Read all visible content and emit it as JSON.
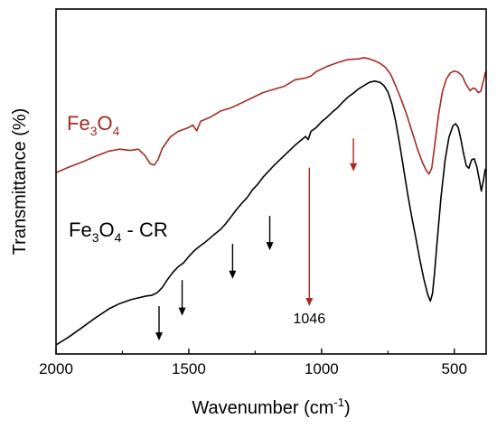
{
  "chart_data": {
    "type": "line",
    "title": "",
    "xlabel": "Wavenumber (cm",
    "xlabel_sup": "-1",
    "xlabel_close": ")",
    "ylabel": "Transmittance (%)",
    "xlim": [
      2000,
      380
    ],
    "x_reversed": true,
    "ylim": [
      0,
      100
    ],
    "y_ticks_shown": false,
    "x_ticks": [
      2000,
      1500,
      1000,
      500
    ],
    "x_tick_labels": [
      "2000",
      "1500",
      "1000",
      "500"
    ],
    "series": [
      {
        "name": "Fe3O4",
        "label_main": "Fe",
        "label_sub1": "3",
        "label_mid": "O",
        "label_sub2": "4",
        "label_suffix": "",
        "color": "#a52a22",
        "points": [
          [
            2000,
            54.2
          ],
          [
            1950,
            56.0
          ],
          [
            1900,
            57.6
          ],
          [
            1850,
            59.4
          ],
          [
            1800,
            61.0
          ],
          [
            1760,
            61.6
          ],
          [
            1720,
            61.2
          ],
          [
            1690,
            61.6
          ],
          [
            1665,
            59.6
          ],
          [
            1645,
            57.0
          ],
          [
            1630,
            56.6
          ],
          [
            1615,
            58.4
          ],
          [
            1600,
            61.8
          ],
          [
            1570,
            65.4
          ],
          [
            1540,
            67.2
          ],
          [
            1500,
            68.4
          ],
          [
            1485,
            69.2
          ],
          [
            1470,
            67.4
          ],
          [
            1455,
            70.4
          ],
          [
            1420,
            71.6
          ],
          [
            1380,
            73.6
          ],
          [
            1340,
            74.6
          ],
          [
            1300,
            76.2
          ],
          [
            1260,
            77.8
          ],
          [
            1220,
            79.4
          ],
          [
            1180,
            80.4
          ],
          [
            1140,
            81.4
          ],
          [
            1100,
            83.4
          ],
          [
            1060,
            84.0
          ],
          [
            1040,
            84.6
          ],
          [
            1020,
            86.0
          ],
          [
            980,
            87.6
          ],
          [
            940,
            88.8
          ],
          [
            900,
            89.8
          ],
          [
            860,
            90.0
          ],
          [
            840,
            90.4
          ],
          [
            820,
            90.0
          ],
          [
            800,
            89.4
          ],
          [
            780,
            88.6
          ],
          [
            760,
            87.4
          ],
          [
            740,
            85.2
          ],
          [
            720,
            81.4
          ],
          [
            700,
            77.2
          ],
          [
            680,
            72.6
          ],
          [
            660,
            67.4
          ],
          [
            640,
            62.0
          ],
          [
            620,
            57.4
          ],
          [
            605,
            54.8
          ],
          [
            595,
            53.8
          ],
          [
            585,
            55.6
          ],
          [
            575,
            62.0
          ],
          [
            560,
            72.0
          ],
          [
            545,
            79.6
          ],
          [
            530,
            83.6
          ],
          [
            515,
            85.6
          ],
          [
            500,
            86.2
          ],
          [
            485,
            85.8
          ],
          [
            470,
            84.6
          ],
          [
            455,
            81.8
          ],
          [
            440,
            80.0
          ],
          [
            430,
            80.8
          ],
          [
            420,
            80.6
          ],
          [
            410,
            79.4
          ],
          [
            400,
            79.8
          ],
          [
            390,
            83.2
          ],
          [
            382,
            86.0
          ]
        ]
      },
      {
        "name": "Fe3O4 - CR",
        "label_main": "Fe",
        "label_sub1": "3",
        "label_mid": "O",
        "label_sub2": "4",
        "label_suffix": " - CR",
        "color": "#000000",
        "points": [
          [
            2000,
            0.0
          ],
          [
            1950,
            2.6
          ],
          [
            1900,
            5.6
          ],
          [
            1850,
            8.6
          ],
          [
            1800,
            11.4
          ],
          [
            1760,
            13.0
          ],
          [
            1720,
            14.2
          ],
          [
            1690,
            14.8
          ],
          [
            1660,
            15.4
          ],
          [
            1640,
            15.6
          ],
          [
            1620,
            16.4
          ],
          [
            1600,
            18.0
          ],
          [
            1580,
            20.6
          ],
          [
            1560,
            22.8
          ],
          [
            1540,
            24.6
          ],
          [
            1520,
            25.8
          ],
          [
            1500,
            27.8
          ],
          [
            1480,
            29.6
          ],
          [
            1460,
            31.0
          ],
          [
            1440,
            32.2
          ],
          [
            1420,
            33.6
          ],
          [
            1400,
            35.0
          ],
          [
            1380,
            36.4
          ],
          [
            1360,
            38.2
          ],
          [
            1340,
            40.4
          ],
          [
            1320,
            42.6
          ],
          [
            1300,
            44.6
          ],
          [
            1280,
            46.4
          ],
          [
            1260,
            48.8
          ],
          [
            1240,
            50.6
          ],
          [
            1220,
            52.8
          ],
          [
            1200,
            54.6
          ],
          [
            1180,
            56.4
          ],
          [
            1160,
            58.0
          ],
          [
            1140,
            59.6
          ],
          [
            1120,
            61.2
          ],
          [
            1100,
            62.8
          ],
          [
            1080,
            64.2
          ],
          [
            1060,
            65.6
          ],
          [
            1050,
            64.6
          ],
          [
            1040,
            67.2
          ],
          [
            1020,
            68.4
          ],
          [
            1000,
            70.2
          ],
          [
            980,
            71.6
          ],
          [
            960,
            73.2
          ],
          [
            940,
            74.6
          ],
          [
            920,
            76.4
          ],
          [
            900,
            78.0
          ],
          [
            880,
            79.2
          ],
          [
            860,
            80.6
          ],
          [
            840,
            81.6
          ],
          [
            820,
            82.6
          ],
          [
            800,
            83.0
          ],
          [
            780,
            82.6
          ],
          [
            765,
            81.6
          ],
          [
            750,
            79.6
          ],
          [
            735,
            75.8
          ],
          [
            720,
            70.0
          ],
          [
            705,
            62.8
          ],
          [
            690,
            55.0
          ],
          [
            675,
            47.2
          ],
          [
            660,
            40.2
          ],
          [
            645,
            33.8
          ],
          [
            630,
            27.0
          ],
          [
            615,
            20.8
          ],
          [
            600,
            15.8
          ],
          [
            590,
            13.8
          ],
          [
            582,
            16.2
          ],
          [
            575,
            22.0
          ],
          [
            565,
            32.0
          ],
          [
            550,
            46.4
          ],
          [
            535,
            58.0
          ],
          [
            520,
            65.4
          ],
          [
            505,
            69.0
          ],
          [
            495,
            69.6
          ],
          [
            485,
            68.4
          ],
          [
            475,
            64.6
          ],
          [
            465,
            60.2
          ],
          [
            455,
            56.4
          ],
          [
            445,
            55.6
          ],
          [
            435,
            58.2
          ],
          [
            425,
            58.6
          ],
          [
            415,
            56.0
          ],
          [
            405,
            51.6
          ],
          [
            398,
            48.4
          ],
          [
            390,
            52.0
          ],
          [
            383,
            55.4
          ]
        ]
      }
    ],
    "annotations": [
      {
        "kind": "arrow",
        "color": "#000000",
        "x": 1612,
        "y_top": 12.2,
        "y_bottom": 1.4
      },
      {
        "kind": "arrow",
        "color": "#000000",
        "x": 1525,
        "y_top": 20.4,
        "y_bottom": 9.2
      },
      {
        "kind": "arrow",
        "color": "#000000",
        "x": 1335,
        "y_top": 31.8,
        "y_bottom": 20.8
      },
      {
        "kind": "arrow",
        "color": "#000000",
        "x": 1195,
        "y_top": 40.6,
        "y_bottom": 29.8
      },
      {
        "kind": "arrow",
        "color": "#a52a22",
        "x": 1046,
        "y_top": 55.8,
        "y_bottom": 12.2
      },
      {
        "kind": "arrow",
        "color": "#a52a22",
        "x": 880,
        "y_top": 65.0,
        "y_bottom": 54.6
      },
      {
        "kind": "text",
        "text": "1046",
        "x": 1046,
        "y": 6.8
      }
    ]
  }
}
